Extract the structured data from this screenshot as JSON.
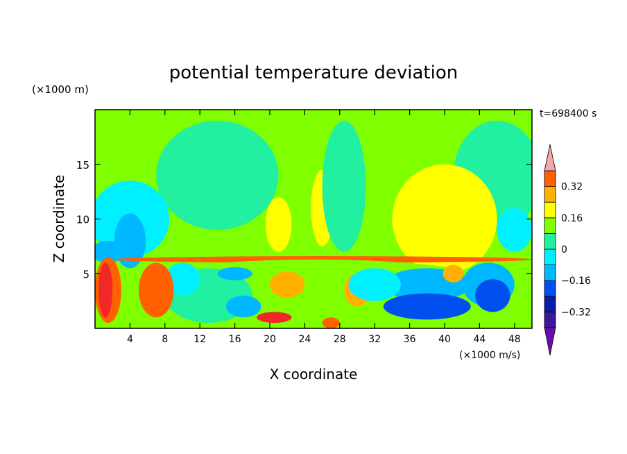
{
  "chart_data": {
    "type": "heatmap",
    "title": "potential temperature deviation",
    "xlabel": "X coordinate",
    "ylabel": "Z coordinate",
    "x_unit": "(×1000 m/s)",
    "y_unit": "(×1000 m)",
    "time_label": "t=698400 s",
    "xlim": [
      0,
      50
    ],
    "ylim": [
      0,
      20
    ],
    "x_ticks": [
      4,
      8,
      12,
      16,
      20,
      24,
      28,
      32,
      36,
      40,
      44,
      48
    ],
    "y_ticks": [
      5,
      10,
      15
    ],
    "colorbar": {
      "labels": [
        "0.32",
        "0.16",
        "0",
        "−0.16",
        "−0.32"
      ],
      "label_values": [
        0.32,
        0.16,
        0,
        -0.16,
        -0.32
      ],
      "levels": [
        -0.4,
        -0.32,
        -0.24,
        -0.16,
        -0.08,
        0,
        0.08,
        0.16,
        0.24,
        0.32,
        0.4
      ],
      "colors": [
        "#6a0db0",
        "#3a1a9a",
        "#0a1ca8",
        "#0050f0",
        "#00b8ff",
        "#00f0ff",
        "#20f0a0",
        "#80ff00",
        "#ffff00",
        "#ffb000",
        "#ff6000",
        "#f02828",
        "#f0a8a8"
      ]
    },
    "regions": [
      {
        "level": 0.04,
        "cx": 25,
        "cy": 13,
        "rx": 25,
        "ry": 7
      },
      {
        "level": 0.12,
        "cx": 26,
        "cy": 11,
        "rx": 1.3,
        "ry": 3.5
      },
      {
        "level": -0.04,
        "cx": 28.5,
        "cy": 13,
        "rx": 2.5,
        "ry": 6
      },
      {
        "level": -0.04,
        "cx": 14,
        "cy": 14,
        "rx": 7,
        "ry": 5
      },
      {
        "level": -0.04,
        "cx": 46,
        "cy": 14,
        "rx": 5,
        "ry": 5
      },
      {
        "level": 0.12,
        "cx": 40,
        "cy": 10,
        "rx": 6,
        "ry": 5
      },
      {
        "level": 0.12,
        "cx": 21,
        "cy": 9.5,
        "rx": 1.5,
        "ry": 2.5
      },
      {
        "level": -0.12,
        "cx": 4,
        "cy": 10,
        "rx": 4.5,
        "ry": 3.5
      },
      {
        "level": -0.2,
        "cx": 4,
        "cy": 8,
        "rx": 1.8,
        "ry": 2.5
      },
      {
        "level": -0.12,
        "cx": 48,
        "cy": 9,
        "rx": 2,
        "ry": 2
      },
      {
        "level": -0.2,
        "cx": 1.5,
        "cy": 7,
        "rx": 2,
        "ry": 1
      },
      {
        "level": 0.28,
        "cx": 26,
        "cy": 6.3,
        "rx": 24,
        "ry": 0.3
      },
      {
        "level": 0.04,
        "cx": 25,
        "cy": 3,
        "rx": 25,
        "ry": 3.3
      },
      {
        "level": -0.04,
        "cx": 13,
        "cy": 3,
        "rx": 5,
        "ry": 2.5
      },
      {
        "level": -0.12,
        "cx": 10,
        "cy": 4.5,
        "rx": 2,
        "ry": 1.5
      },
      {
        "level": -0.2,
        "cx": 38,
        "cy": 4,
        "rx": 5,
        "ry": 1.5
      },
      {
        "level": -0.28,
        "cx": 38,
        "cy": 2,
        "rx": 5,
        "ry": 1.2
      },
      {
        "level": -0.2,
        "cx": 45,
        "cy": 4,
        "rx": 3,
        "ry": 2
      },
      {
        "level": -0.28,
        "cx": 45.5,
        "cy": 3,
        "rx": 2,
        "ry": 1.5
      },
      {
        "level": -0.2,
        "cx": 17,
        "cy": 2,
        "rx": 2,
        "ry": 1
      },
      {
        "level": 0.28,
        "cx": 1.5,
        "cy": 3.5,
        "rx": 1.5,
        "ry": 3
      },
      {
        "level": 0.36,
        "cx": 1.2,
        "cy": 3.5,
        "rx": 0.8,
        "ry": 2.5
      },
      {
        "level": 0.28,
        "cx": 7,
        "cy": 3.5,
        "rx": 2,
        "ry": 2.5
      },
      {
        "level": 0.36,
        "cx": 20.5,
        "cy": 1,
        "rx": 2,
        "ry": 0.5
      },
      {
        "level": 0.28,
        "cx": 27,
        "cy": 0.5,
        "rx": 1,
        "ry": 0.5
      },
      {
        "level": 0.2,
        "cx": 41,
        "cy": 5,
        "rx": 1.2,
        "ry": 0.8
      },
      {
        "level": 0.2,
        "cx": 22,
        "cy": 4,
        "rx": 2,
        "ry": 1.2
      },
      {
        "level": 0.2,
        "cx": 30,
        "cy": 3.5,
        "rx": 1.5,
        "ry": 1.5
      },
      {
        "level": -0.12,
        "cx": 32,
        "cy": 4,
        "rx": 3,
        "ry": 1.5
      },
      {
        "level": -0.2,
        "cx": 16,
        "cy": 5,
        "rx": 2,
        "ry": 0.6
      }
    ]
  }
}
